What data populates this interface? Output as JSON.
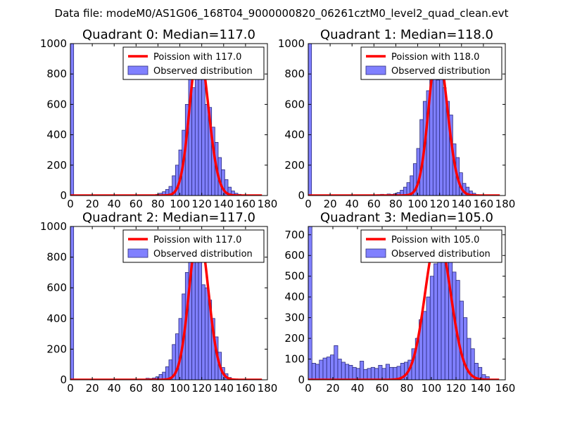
{
  "figure": {
    "suptitle": "Data file: modeM0/AS1G06_168T04_9000000820_06261cztM0_level2_quad_clean.evt"
  },
  "colors": {
    "bar_fill": "#8080ff",
    "bar_edge": "#2a2a7a",
    "curve": "#ff0000",
    "axis": "#000000"
  },
  "chart_data": [
    {
      "type": "bar",
      "title": "Quadrant 0: Median=117.0",
      "xlim": [
        0,
        180
      ],
      "ylim": [
        0,
        1000
      ],
      "xticks": [
        0,
        20,
        40,
        60,
        80,
        100,
        120,
        140,
        160,
        180
      ],
      "yticks": [
        0,
        200,
        400,
        600,
        800,
        1000
      ],
      "bin_width": 3,
      "legend": {
        "curve_label": "Poission with 117.0",
        "bars_label": "Observed distribution",
        "position": "upper-right"
      },
      "bins": [
        [
          0,
          1000
        ],
        [
          69,
          2
        ],
        [
          72,
          3
        ],
        [
          75,
          4
        ],
        [
          78,
          8
        ],
        [
          81,
          15
        ],
        [
          84,
          25
        ],
        [
          87,
          40
        ],
        [
          90,
          60
        ],
        [
          93,
          130
        ],
        [
          96,
          200
        ],
        [
          99,
          300
        ],
        [
          102,
          430
        ],
        [
          105,
          600
        ],
        [
          108,
          800
        ],
        [
          111,
          710
        ],
        [
          114,
          860
        ],
        [
          117,
          940
        ],
        [
          120,
          820
        ],
        [
          123,
          600
        ],
        [
          126,
          580
        ],
        [
          129,
          450
        ],
        [
          132,
          350
        ],
        [
          135,
          250
        ],
        [
          138,
          170
        ],
        [
          141,
          105
        ],
        [
          144,
          55
        ],
        [
          147,
          30
        ],
        [
          150,
          15
        ],
        [
          153,
          8
        ],
        [
          156,
          3
        ]
      ],
      "curve": {
        "peak": 970,
        "mu": 117,
        "sigma_left": 8,
        "sigma_right": 9,
        "x_end": 175
      }
    },
    {
      "type": "bar",
      "title": "Quadrant 1: Median=118.0",
      "xlim": [
        0,
        180
      ],
      "ylim": [
        0,
        1000
      ],
      "xticks": [
        0,
        20,
        40,
        60,
        80,
        100,
        120,
        140,
        160,
        180
      ],
      "yticks": [
        0,
        200,
        400,
        600,
        800,
        1000
      ],
      "bin_width": 3,
      "legend": {
        "curve_label": "Poission with 118.0",
        "bars_label": "Observed distribution",
        "position": "upper-right"
      },
      "bins": [
        [
          0,
          1000
        ],
        [
          63,
          6
        ],
        [
          66,
          8
        ],
        [
          69,
          6
        ],
        [
          72,
          10
        ],
        [
          75,
          8
        ],
        [
          78,
          12
        ],
        [
          81,
          20
        ],
        [
          84,
          35
        ],
        [
          87,
          55
        ],
        [
          90,
          85
        ],
        [
          93,
          130
        ],
        [
          96,
          210
        ],
        [
          99,
          310
        ],
        [
          102,
          500
        ],
        [
          105,
          620
        ],
        [
          108,
          690
        ],
        [
          111,
          800
        ],
        [
          114,
          950
        ],
        [
          117,
          760
        ],
        [
          120,
          920
        ],
        [
          123,
          710
        ],
        [
          126,
          620
        ],
        [
          129,
          530
        ],
        [
          132,
          340
        ],
        [
          135,
          250
        ],
        [
          138,
          150
        ],
        [
          141,
          80
        ],
        [
          144,
          55
        ],
        [
          147,
          30
        ],
        [
          150,
          15
        ],
        [
          153,
          6
        ]
      ],
      "curve": {
        "peak": 960,
        "mu": 118,
        "sigma_left": 8,
        "sigma_right": 9,
        "x_end": 175
      }
    },
    {
      "type": "bar",
      "title": "Quadrant 2: Median=117.0",
      "xlim": [
        0,
        180
      ],
      "ylim": [
        0,
        1000
      ],
      "xticks": [
        0,
        20,
        40,
        60,
        80,
        100,
        120,
        140,
        160,
        180
      ],
      "yticks": [
        0,
        200,
        400,
        600,
        800,
        1000
      ],
      "bin_width": 3,
      "legend": {
        "curve_label": "Poission with 117.0",
        "bars_label": "Observed distribution",
        "position": "upper-right"
      },
      "bins": [
        [
          0,
          1000
        ],
        [
          66,
          4
        ],
        [
          69,
          10
        ],
        [
          72,
          8
        ],
        [
          75,
          12
        ],
        [
          78,
          20
        ],
        [
          81,
          35
        ],
        [
          84,
          50
        ],
        [
          87,
          85
        ],
        [
          90,
          130
        ],
        [
          93,
          230
        ],
        [
          96,
          300
        ],
        [
          99,
          400
        ],
        [
          102,
          560
        ],
        [
          105,
          700
        ],
        [
          108,
          820
        ],
        [
          111,
          940
        ],
        [
          114,
          880
        ],
        [
          117,
          790
        ],
        [
          120,
          620
        ],
        [
          123,
          600
        ],
        [
          126,
          520
        ],
        [
          129,
          400
        ],
        [
          132,
          280
        ],
        [
          135,
          180
        ],
        [
          138,
          80
        ],
        [
          141,
          40
        ],
        [
          144,
          15
        ],
        [
          147,
          5
        ]
      ],
      "curve": {
        "peak": 970,
        "mu": 117,
        "sigma_left": 8.5,
        "sigma_right": 9,
        "x_end": 175
      }
    },
    {
      "type": "bar",
      "title": "Quadrant 3: Median=105.0",
      "xlim": [
        0,
        160
      ],
      "ylim": [
        0,
        740
      ],
      "xticks": [
        0,
        20,
        40,
        60,
        80,
        100,
        120,
        140,
        160
      ],
      "yticks": [
        0,
        100,
        200,
        300,
        400,
        500,
        600,
        700
      ],
      "bin_width": 3,
      "legend": {
        "curve_label": "Poission with 105.0",
        "bars_label": "Observed distribution",
        "position": "upper-right"
      },
      "bins": [
        [
          0,
          740
        ],
        [
          3,
          80
        ],
        [
          6,
          75
        ],
        [
          9,
          95
        ],
        [
          12,
          105
        ],
        [
          15,
          110
        ],
        [
          18,
          120
        ],
        [
          21,
          165
        ],
        [
          24,
          100
        ],
        [
          27,
          85
        ],
        [
          30,
          75
        ],
        [
          33,
          70
        ],
        [
          36,
          60
        ],
        [
          39,
          55
        ],
        [
          42,
          90
        ],
        [
          45,
          50
        ],
        [
          48,
          55
        ],
        [
          51,
          60
        ],
        [
          54,
          55
        ],
        [
          57,
          70
        ],
        [
          60,
          55
        ],
        [
          63,
          75
        ],
        [
          66,
          60
        ],
        [
          69,
          60
        ],
        [
          72,
          65
        ],
        [
          75,
          80
        ],
        [
          78,
          85
        ],
        [
          81,
          95
        ],
        [
          84,
          150
        ],
        [
          87,
          200
        ],
        [
          90,
          290
        ],
        [
          93,
          330
        ],
        [
          96,
          400
        ],
        [
          99,
          500
        ],
        [
          102,
          560
        ],
        [
          105,
          680
        ],
        [
          108,
          680
        ],
        [
          111,
          720
        ],
        [
          114,
          600
        ],
        [
          117,
          520
        ],
        [
          120,
          480
        ],
        [
          123,
          380
        ],
        [
          126,
          300
        ],
        [
          129,
          200
        ],
        [
          132,
          150
        ],
        [
          135,
          80
        ],
        [
          138,
          60
        ],
        [
          141,
          25
        ],
        [
          144,
          15
        ]
      ],
      "curve": {
        "peak": 700,
        "mu": 105,
        "sigma_left": 10,
        "sigma_right": 10.5,
        "x_end": 155
      }
    }
  ]
}
